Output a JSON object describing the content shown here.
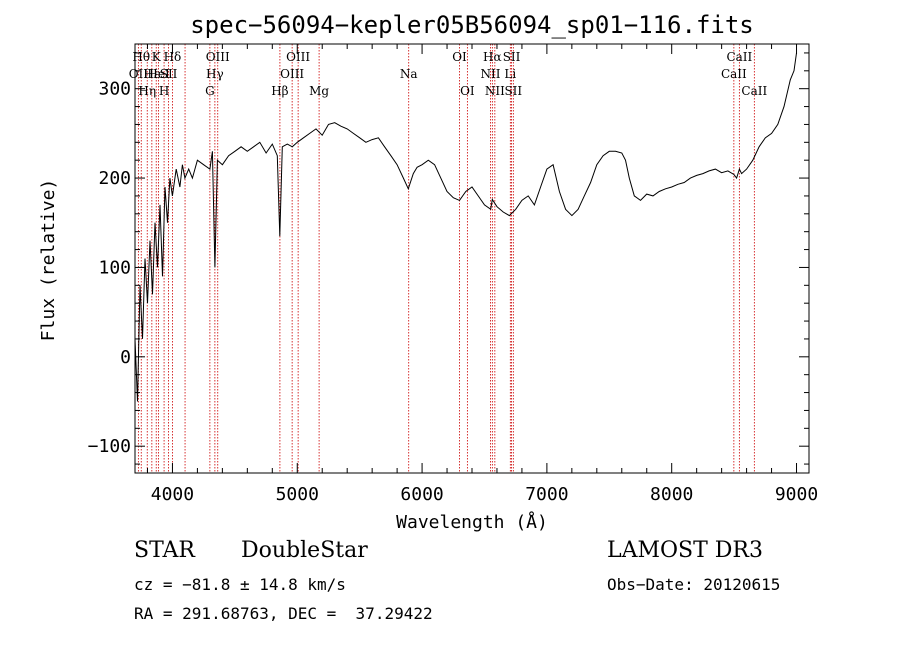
{
  "chart_data": {
    "type": "line",
    "title": "spec−56094−kepler05B56094_sp01−116.fits",
    "xlabel": "Wavelength (Å)",
    "ylabel": "Flux (relative)",
    "xlim": [
      3700,
      9100
    ],
    "ylim": [
      -130,
      350
    ],
    "xticks": [
      4000,
      5000,
      6000,
      7000,
      8000,
      9000
    ],
    "yticks": [
      -100,
      0,
      100,
      200,
      300
    ],
    "xtick_labels": [
      "4000",
      "5000",
      "6000",
      "7000",
      "8000",
      "9000"
    ],
    "ytick_labels": [
      "−100",
      "0",
      "100",
      "200",
      "300"
    ],
    "series": [
      {
        "name": "spectrum",
        "x": [
          3700,
          3720,
          3740,
          3760,
          3780,
          3800,
          3820,
          3840,
          3860,
          3880,
          3900,
          3920,
          3940,
          3960,
          3980,
          4000,
          4030,
          4060,
          4080,
          4100,
          4130,
          4160,
          4200,
          4250,
          4300,
          4320,
          4340,
          4360,
          4400,
          4450,
          4500,
          4550,
          4600,
          4650,
          4700,
          4750,
          4800,
          4840,
          4860,
          4880,
          4920,
          4960,
          5000,
          5050,
          5100,
          5150,
          5200,
          5250,
          5300,
          5350,
          5400,
          5450,
          5500,
          5550,
          5600,
          5650,
          5700,
          5750,
          5800,
          5850,
          5890,
          5930,
          5960,
          6000,
          6050,
          6100,
          6150,
          6200,
          6250,
          6300,
          6350,
          6400,
          6450,
          6500,
          6550,
          6563,
          6600,
          6650,
          6700,
          6750,
          6800,
          6850,
          6900,
          6950,
          7000,
          7050,
          7100,
          7150,
          7200,
          7250,
          7300,
          7350,
          7400,
          7450,
          7500,
          7550,
          7600,
          7630,
          7660,
          7700,
          7750,
          7800,
          7850,
          7900,
          7950,
          8000,
          8050,
          8100,
          8150,
          8200,
          8250,
          8300,
          8350,
          8400,
          8450,
          8498,
          8520,
          8542,
          8560,
          8600,
          8650,
          8700,
          8750,
          8800,
          8850,
          8900,
          8950,
          8980,
          9000
        ],
        "y": [
          20,
          -50,
          80,
          20,
          110,
          60,
          130,
          70,
          150,
          100,
          170,
          90,
          190,
          150,
          200,
          180,
          210,
          190,
          215,
          200,
          210,
          200,
          220,
          215,
          210,
          230,
          100,
          220,
          215,
          225,
          230,
          235,
          230,
          235,
          240,
          228,
          238,
          225,
          135,
          235,
          238,
          235,
          240,
          245,
          250,
          255,
          248,
          260,
          262,
          258,
          255,
          250,
          245,
          240,
          243,
          245,
          235,
          225,
          215,
          200,
          188,
          205,
          212,
          215,
          220,
          215,
          200,
          185,
          178,
          175,
          185,
          190,
          180,
          170,
          165,
          176,
          168,
          162,
          158,
          165,
          175,
          180,
          170,
          190,
          210,
          215,
          185,
          165,
          158,
          165,
          180,
          195,
          215,
          225,
          230,
          230,
          228,
          220,
          200,
          180,
          175,
          182,
          180,
          185,
          188,
          190,
          193,
          195,
          200,
          203,
          205,
          208,
          210,
          206,
          208,
          204,
          200,
          210,
          205,
          210,
          220,
          235,
          245,
          250,
          260,
          280,
          310,
          320,
          340
        ]
      }
    ],
    "lines": [
      {
        "wavelength": 3727,
        "label": "OII",
        "row": 2
      },
      {
        "wavelength": 3750,
        "label": "Hθ",
        "row": 1
      },
      {
        "wavelength": 3798,
        "label": "Hη",
        "row": 3
      },
      {
        "wavelength": 3835,
        "label": "Hε",
        "row": 2
      },
      {
        "wavelength": 3870,
        "label": "K",
        "row": 1
      },
      {
        "wavelength": 3889,
        "label": "HeI",
        "row": 2
      },
      {
        "wavelength": 3933,
        "label": "H",
        "row": 3
      },
      {
        "wavelength": 3969,
        "label": "SII",
        "row": 2
      },
      {
        "wavelength": 4000,
        "label": "Hδ",
        "row": 1
      },
      {
        "wavelength": 4101,
        "label": "",
        "row": 0
      },
      {
        "wavelength": 4300,
        "label": "G",
        "row": 3
      },
      {
        "wavelength": 4340,
        "label": "Hγ",
        "row": 2
      },
      {
        "wavelength": 4363,
        "label": "OIII",
        "row": 1
      },
      {
        "wavelength": 4861,
        "label": "Hβ",
        "row": 3
      },
      {
        "wavelength": 4959,
        "label": "OIII",
        "row": 2
      },
      {
        "wavelength": 5007,
        "label": "OIII",
        "row": 1
      },
      {
        "wavelength": 5175,
        "label": "Mg",
        "row": 3
      },
      {
        "wavelength": 5893,
        "label": "Na",
        "row": 2
      },
      {
        "wavelength": 6300,
        "label": "OI",
        "row": 1
      },
      {
        "wavelength": 6363,
        "label": "OI",
        "row": 3
      },
      {
        "wavelength": 6548,
        "label": "NII",
        "row": 2
      },
      {
        "wavelength": 6563,
        "label": "Hα",
        "row": 1
      },
      {
        "wavelength": 6583,
        "label": "NII",
        "row": 3
      },
      {
        "wavelength": 6707,
        "label": "Li",
        "row": 2
      },
      {
        "wavelength": 6717,
        "label": "SII",
        "row": 1
      },
      {
        "wavelength": 6731,
        "label": "SII",
        "row": 3
      },
      {
        "wavelength": 8498,
        "label": "CaII",
        "row": 2
      },
      {
        "wavelength": 8542,
        "label": "CaII",
        "row": 1
      },
      {
        "wavelength": 8662,
        "label": "CaII",
        "row": 3
      }
    ]
  },
  "info": {
    "class": "STAR",
    "subclass": "DoubleStar",
    "survey": "LAMOST DR3",
    "cz": "cz = −81.8 ± 14.8 km/s",
    "obs_date": "Obs−Date: 20120615",
    "radec": "RA = 291.68763, DEC =  37.29422"
  },
  "colors": {
    "line": "#000000",
    "marker": "#cc0000"
  }
}
